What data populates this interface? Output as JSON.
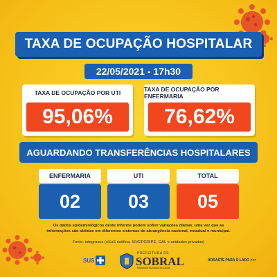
{
  "title": "TAXA DE OCUPAÇÃO HOSPITALAR",
  "date": "22/05/2021 - 17h30",
  "occupancy": {
    "uti_label": "TAXA DE OCUPAÇÃO POR UTI",
    "uti_value": "95,06%",
    "enfermaria_label": "TAXA DE OCUPAÇÃO POR ENFERMARIA",
    "enfermaria_value": "76,62%"
  },
  "transfers": {
    "heading": "AGUARDANDO TRANSFERÊNCIAS HOSPITALARES",
    "enfermaria_label": "ENFERMARIA",
    "enfermaria_value": "02",
    "uti_label": "UTI",
    "uti_value": "03",
    "total_label": "TOTAL",
    "total_value": "05"
  },
  "notice_line1": "Os dados epidemiológicos deste informe podem sofrer variações diárias, uma vez que as",
  "notice_line2": "informações são obtidas em diferentes sistemas de abrangência nacional, estadual e municipal.",
  "source": "Fonte: integrasus (eSuS notifica, SIVEPGRIPE, GAL e unidades privadas)",
  "logos": {
    "sus": "SUS",
    "prefeitura": "PREFEITURA DE",
    "sobral": "SOBRAL",
    "secretaria": "Secretaria Municipal da Saúde"
  },
  "arraste": "ARRASTE PARA O LADO >>>",
  "colors": {
    "background": "#f7c51e",
    "blue": "#1a5fb0",
    "orange_red": "#f2461e"
  }
}
